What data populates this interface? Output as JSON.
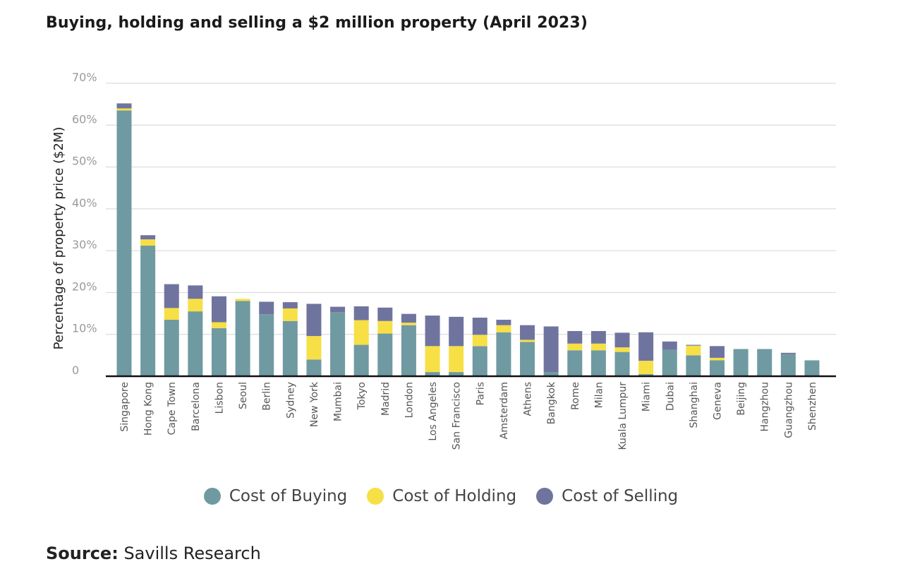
{
  "title": "Buying, holding and selling a $2 million property (April 2023)",
  "source_label": "Source:",
  "source_text": "Savills Research",
  "colors": {
    "buying": "#6f9aa1",
    "holding": "#f7df46",
    "selling": "#6f749f"
  },
  "chart_data": {
    "type": "bar",
    "stacked": true,
    "ylabel": "Percentage of property price ($2M)",
    "ylim": [
      0,
      70
    ],
    "yticks": [
      "0",
      "10%",
      "20%",
      "30%",
      "40%",
      "50%",
      "60%",
      "70%"
    ],
    "grid": true,
    "legend_position": "bottom",
    "categories": [
      "Singapore",
      "Hong Kong",
      "Cape Town",
      "Barcelona",
      "Lisbon",
      "Seoul",
      "Berlin",
      "Sydney",
      "New York",
      "Mumbai",
      "Tokyo",
      "Madrid",
      "London",
      "Los Angeles",
      "San Francisco",
      "Paris",
      "Amsterdam",
      "Athens",
      "Bangkok",
      "Rome",
      "Milan",
      "Kuala Lumpur",
      "Miami",
      "Dubai",
      "Shanghai",
      "Geneva",
      "Beijing",
      "Hangzhou",
      "Guangzhou",
      "Shenzhen"
    ],
    "series": [
      {
        "name": "Cost of Buying",
        "values": [
          63.5,
          31.2,
          13.5,
          15.5,
          11.5,
          18.0,
          14.8,
          13.2,
          4.0,
          15.3,
          7.5,
          10.2,
          12.2,
          1.0,
          1.0,
          7.2,
          10.5,
          8.2,
          1.0,
          6.2,
          6.2,
          5.8,
          0.5,
          6.3,
          5.0,
          3.8,
          6.5,
          6.5,
          5.3,
          3.8
        ]
      },
      {
        "name": "Cost of Holding",
        "values": [
          0.5,
          1.5,
          2.8,
          3.0,
          1.4,
          0.5,
          0,
          3.0,
          5.6,
          0,
          5.9,
          3.0,
          0.6,
          6.2,
          6.2,
          2.7,
          1.7,
          0.5,
          0,
          1.6,
          1.6,
          1.1,
          3.2,
          0,
          2.3,
          0.6,
          0,
          0,
          0,
          0
        ]
      },
      {
        "name": "Cost of Selling",
        "values": [
          1.2,
          1.0,
          5.7,
          3.2,
          6.2,
          0,
          3.0,
          1.5,
          7.7,
          1.3,
          3.3,
          3.2,
          2.1,
          7.3,
          7.0,
          4.1,
          1.3,
          3.5,
          10.9,
          3.0,
          3.0,
          3.5,
          6.8,
          2.0,
          0.2,
          2.8,
          0,
          0,
          0.3,
          0
        ]
      }
    ]
  }
}
